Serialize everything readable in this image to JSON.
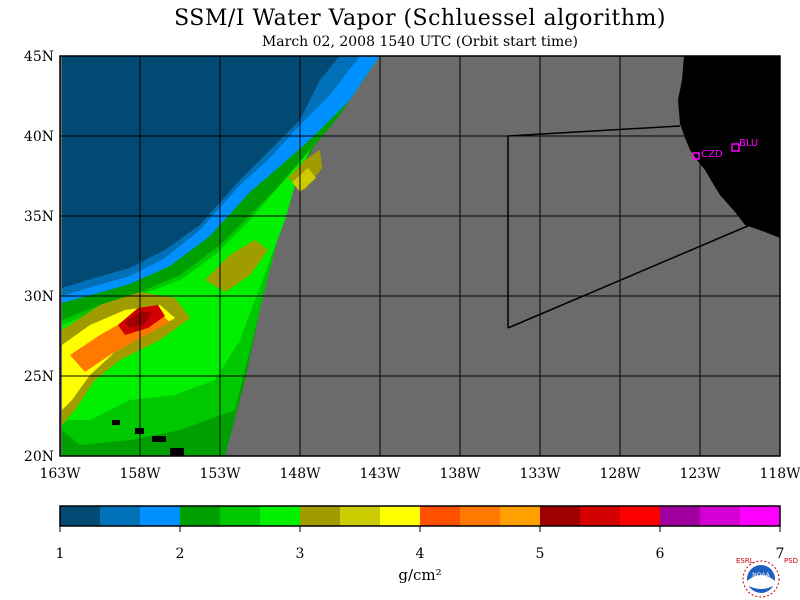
{
  "header": {
    "title": "SSM/I Water Vapor (Schluessel algorithm)",
    "subtitle": "March 02, 2008  1540 UTC  (Orbit start time)"
  },
  "map": {
    "background_color": "#6b6b6b",
    "land_color": "#000000",
    "x_ticks": [
      "163W",
      "158W",
      "153W",
      "148W",
      "143W",
      "138W",
      "133W",
      "128W",
      "123W",
      "118W"
    ],
    "y_ticks": [
      "45N",
      "40N",
      "35N",
      "30N",
      "25N",
      "20N"
    ],
    "stations": [
      {
        "label": "CZD",
        "color": "#ff00ff"
      },
      {
        "label": "BLU",
        "color": "#ff00ff"
      }
    ]
  },
  "colorbar": {
    "colors": [
      "#004a74",
      "#0070b8",
      "#0090ff",
      "#00a000",
      "#00c800",
      "#00f000",
      "#a09c00",
      "#cccc00",
      "#ffff00",
      "#ff5000",
      "#ff7800",
      "#ffa000",
      "#a00000",
      "#d20000",
      "#ff0000",
      "#a000a0",
      "#d200d2",
      "#ff00ff"
    ],
    "tick_labels": [
      "1",
      "2",
      "3",
      "4",
      "5",
      "6",
      "7"
    ],
    "units": "g/cm²"
  },
  "logo": {
    "left_text": "ESRL",
    "right_text": "PSD",
    "center_text": "NOAA"
  }
}
